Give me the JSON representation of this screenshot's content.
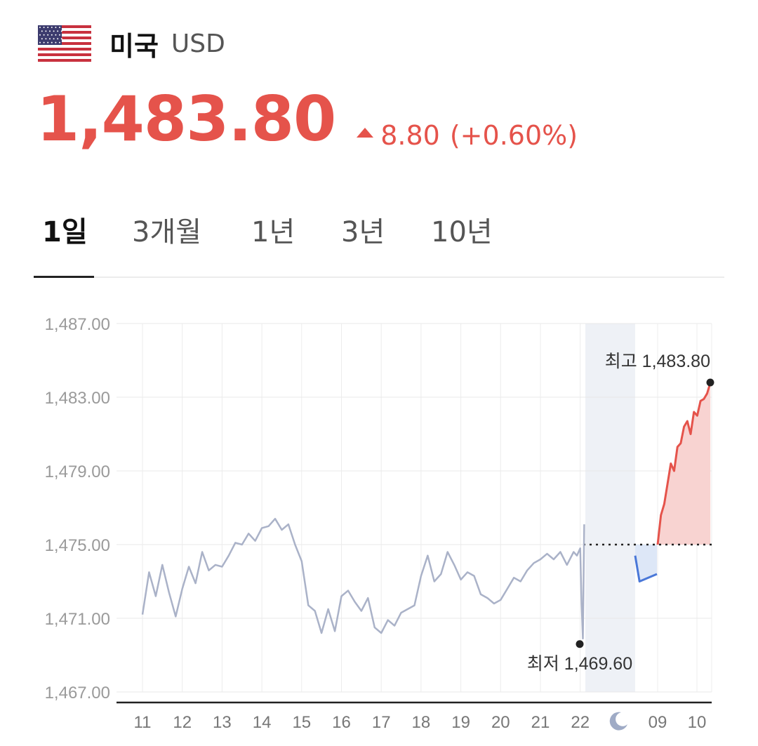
{
  "header": {
    "country": "미국",
    "currency": "USD",
    "flag_icon": "us-flag-icon"
  },
  "quote": {
    "price": "1,483.80",
    "change": "8.80",
    "change_pct": "(+0.60%)",
    "direction": "up",
    "color": "#e5534b"
  },
  "tabs": [
    {
      "label": "1일",
      "active": true
    },
    {
      "label": "3개월",
      "active": false
    },
    {
      "label": "1년",
      "active": false
    },
    {
      "label": "3년",
      "active": false
    },
    {
      "label": "10년",
      "active": false
    }
  ],
  "chart_data": {
    "type": "line",
    "ylim": [
      1467.0,
      1487.0
    ],
    "ytick_labels": [
      "1,487.00",
      "1,483.00",
      "1,479.00",
      "1,475.00",
      "1,471.00",
      "1,467.00"
    ],
    "xtick_labels": [
      "11",
      "12",
      "13",
      "14",
      "15",
      "16",
      "17",
      "18",
      "19",
      "20",
      "21",
      "22",
      "09",
      "10"
    ],
    "night_icon": "moon-icon",
    "previous_close": 1475.0,
    "high": {
      "label": "최고 1,483.80",
      "value": 1483.8
    },
    "low": {
      "label": "최저 1,469.60",
      "value": 1469.6
    },
    "colors": {
      "previous_session": "#aab2c8",
      "night_session": "#4a78d8",
      "rise": "#e5534b",
      "rise_fill": "#f8d3d1",
      "night_fill": "#dde7f7",
      "night_band": "#eef1f6"
    },
    "series": [
      {
        "session": "previous",
        "x": [
          "11:00",
          "11:10",
          "11:20",
          "11:30",
          "11:40",
          "11:50",
          "12:00",
          "12:10",
          "12:20",
          "12:30",
          "12:40",
          "12:50",
          "13:00",
          "13:10",
          "13:20",
          "13:30",
          "13:40",
          "13:50",
          "14:00",
          "14:10",
          "14:20",
          "14:30",
          "14:40",
          "14:50",
          "15:00",
          "15:10",
          "15:20",
          "15:30",
          "15:40",
          "15:50",
          "16:00",
          "16:10",
          "16:20",
          "16:30",
          "16:40",
          "16:50",
          "17:00",
          "17:10",
          "17:20",
          "17:30",
          "17:40",
          "17:50",
          "18:00",
          "18:10",
          "18:20",
          "18:30",
          "18:40",
          "18:50",
          "19:00",
          "19:10",
          "19:20",
          "19:30",
          "19:40",
          "19:50",
          "20:00",
          "20:10",
          "20:20",
          "20:30",
          "20:40",
          "20:50",
          "21:00",
          "21:10",
          "21:20",
          "21:30",
          "21:40",
          "21:50",
          "21:55",
          "22:00",
          "22:02",
          "22:04",
          "22:06"
        ],
        "values": [
          1471.2,
          1473.5,
          1472.2,
          1473.9,
          1472.4,
          1471.1,
          1472.6,
          1473.8,
          1472.9,
          1474.6,
          1473.6,
          1473.9,
          1473.8,
          1474.4,
          1475.1,
          1475.0,
          1475.6,
          1475.2,
          1475.9,
          1476.0,
          1476.4,
          1475.8,
          1476.1,
          1475.0,
          1474.1,
          1471.7,
          1471.4,
          1470.2,
          1471.5,
          1470.3,
          1472.2,
          1472.5,
          1471.9,
          1471.4,
          1472.1,
          1470.5,
          1470.2,
          1470.9,
          1470.6,
          1471.3,
          1471.5,
          1471.7,
          1473.3,
          1474.4,
          1473.0,
          1473.4,
          1474.6,
          1473.9,
          1473.1,
          1473.5,
          1473.3,
          1472.3,
          1472.1,
          1471.8,
          1472.0,
          1472.6,
          1473.2,
          1473.0,
          1473.6,
          1474.0,
          1474.2,
          1474.5,
          1474.2,
          1474.6,
          1473.9,
          1474.6,
          1474.4,
          1474.8,
          1471.8,
          1469.9,
          1476.1
        ]
      },
      {
        "session": "night",
        "x": [
          "00:00",
          "00:20",
          "00:40",
          "01:00",
          "01:20",
          "01:40"
        ],
        "values": [
          1474.4,
          1473.0,
          1473.1,
          1473.2,
          1473.3,
          1473.4
        ]
      },
      {
        "session": "current",
        "x": [
          "09:00",
          "09:05",
          "09:10",
          "09:15",
          "09:20",
          "09:25",
          "09:30",
          "09:35",
          "09:40",
          "09:45",
          "09:50",
          "09:55",
          "10:00",
          "10:05",
          "10:10",
          "10:15",
          "10:20"
        ],
        "values": [
          1475.0,
          1476.6,
          1477.2,
          1478.3,
          1479.4,
          1479.0,
          1480.3,
          1480.5,
          1481.4,
          1481.7,
          1481.0,
          1482.2,
          1482.0,
          1482.8,
          1482.9,
          1483.2,
          1483.8
        ]
      }
    ]
  }
}
